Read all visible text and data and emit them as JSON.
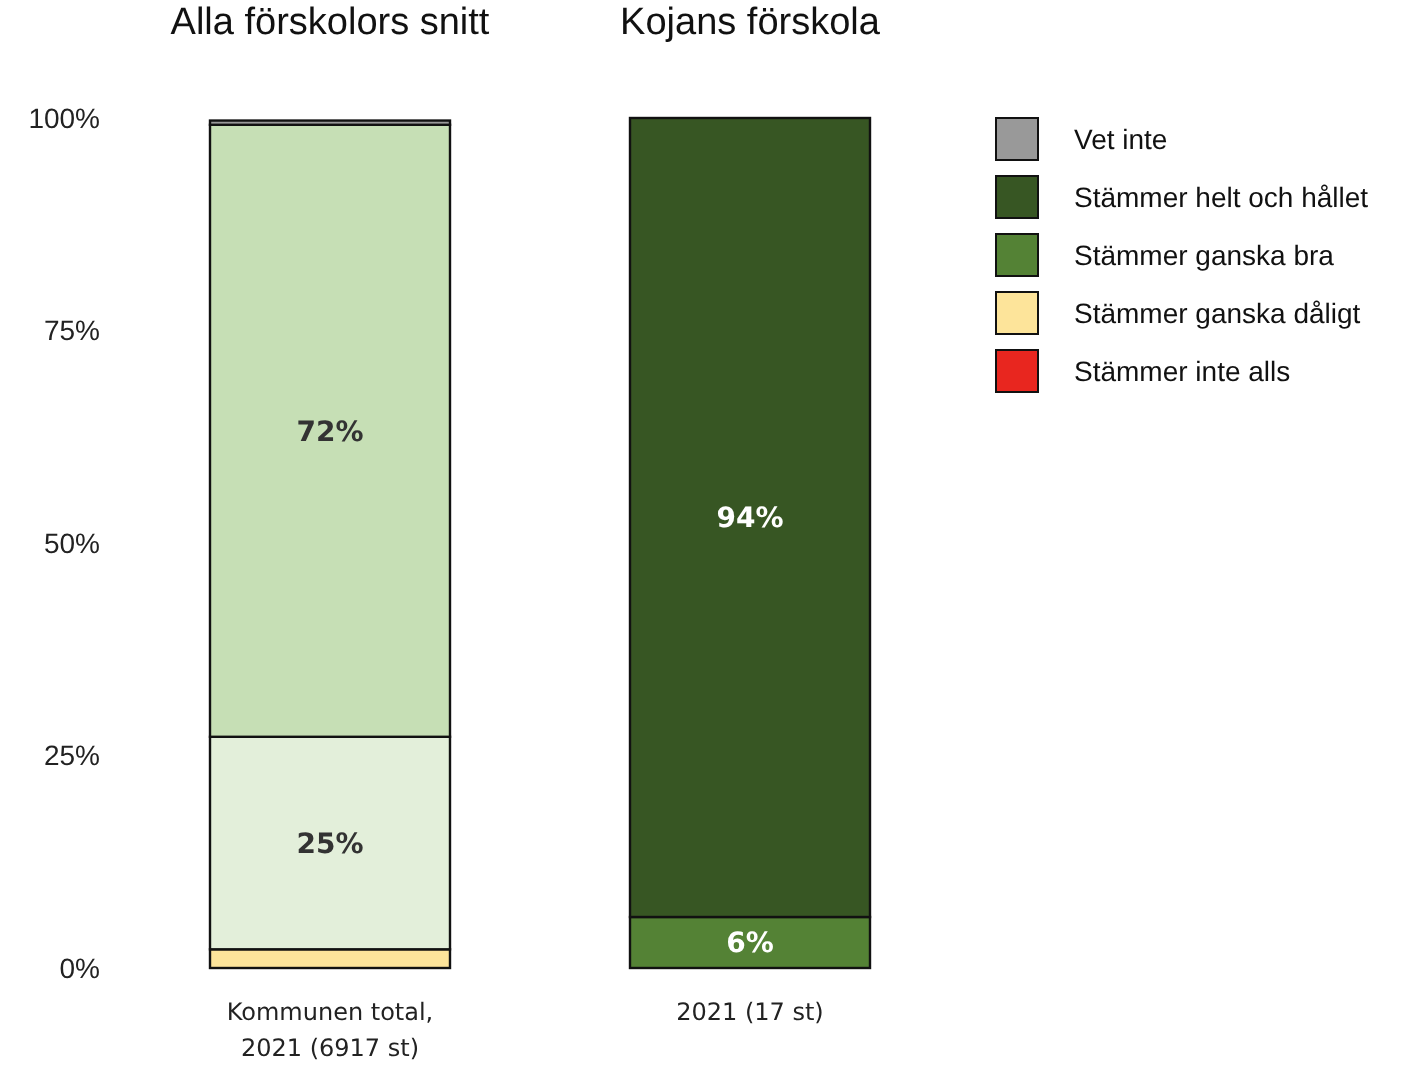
{
  "chart_data": {
    "type": "bar",
    "stacked": true,
    "categories": [
      "Kommunen total,\n2021 (6917 st)",
      "2021 (17 st)"
    ],
    "annotations": [
      {
        "text": "Alla förskolors snitt",
        "x": "Kommunen total,\n2021 (6917 st)",
        "y": 100
      },
      {
        "text": "Kojans förskola",
        "x": "2021 (17 st)",
        "y": 100
      }
    ],
    "series": [
      {
        "name": "Stämmer inte alls",
        "color": "#e8261f",
        "values": [
          null,
          0
        ]
      },
      {
        "name": "Stämmer ganska dåligt",
        "color": "#fde49a",
        "colors": [
          "#fde49a",
          null
        ],
        "values": [
          2.2,
          0
        ]
      },
      {
        "name": "Stämmer ganska bra",
        "color": "#548235",
        "colors": [
          "#e3efda",
          "#548235"
        ],
        "values": [
          25,
          6
        ],
        "value_labels": [
          "25%",
          "6%"
        ]
      },
      {
        "name": "Stämmer helt och hållet",
        "color": "#375623",
        "colors": [
          "#c6dfb5",
          "#375623"
        ],
        "values": [
          72,
          94
        ],
        "value_labels": [
          "72%",
          "94%"
        ]
      },
      {
        "name": "Vet inte",
        "color": "#999999",
        "colors": [
          "#999999",
          null
        ],
        "values": [
          0.5,
          0
        ]
      }
    ],
    "ylim": [
      0,
      100
    ],
    "yticks": [
      {
        "value": 0,
        "label": "0%"
      },
      {
        "value": 25,
        "label": "25%"
      },
      {
        "value": 50,
        "label": "50%"
      },
      {
        "value": 75,
        "label": "75%"
      },
      {
        "value": 100,
        "label": "100%"
      }
    ],
    "legend": "right"
  }
}
